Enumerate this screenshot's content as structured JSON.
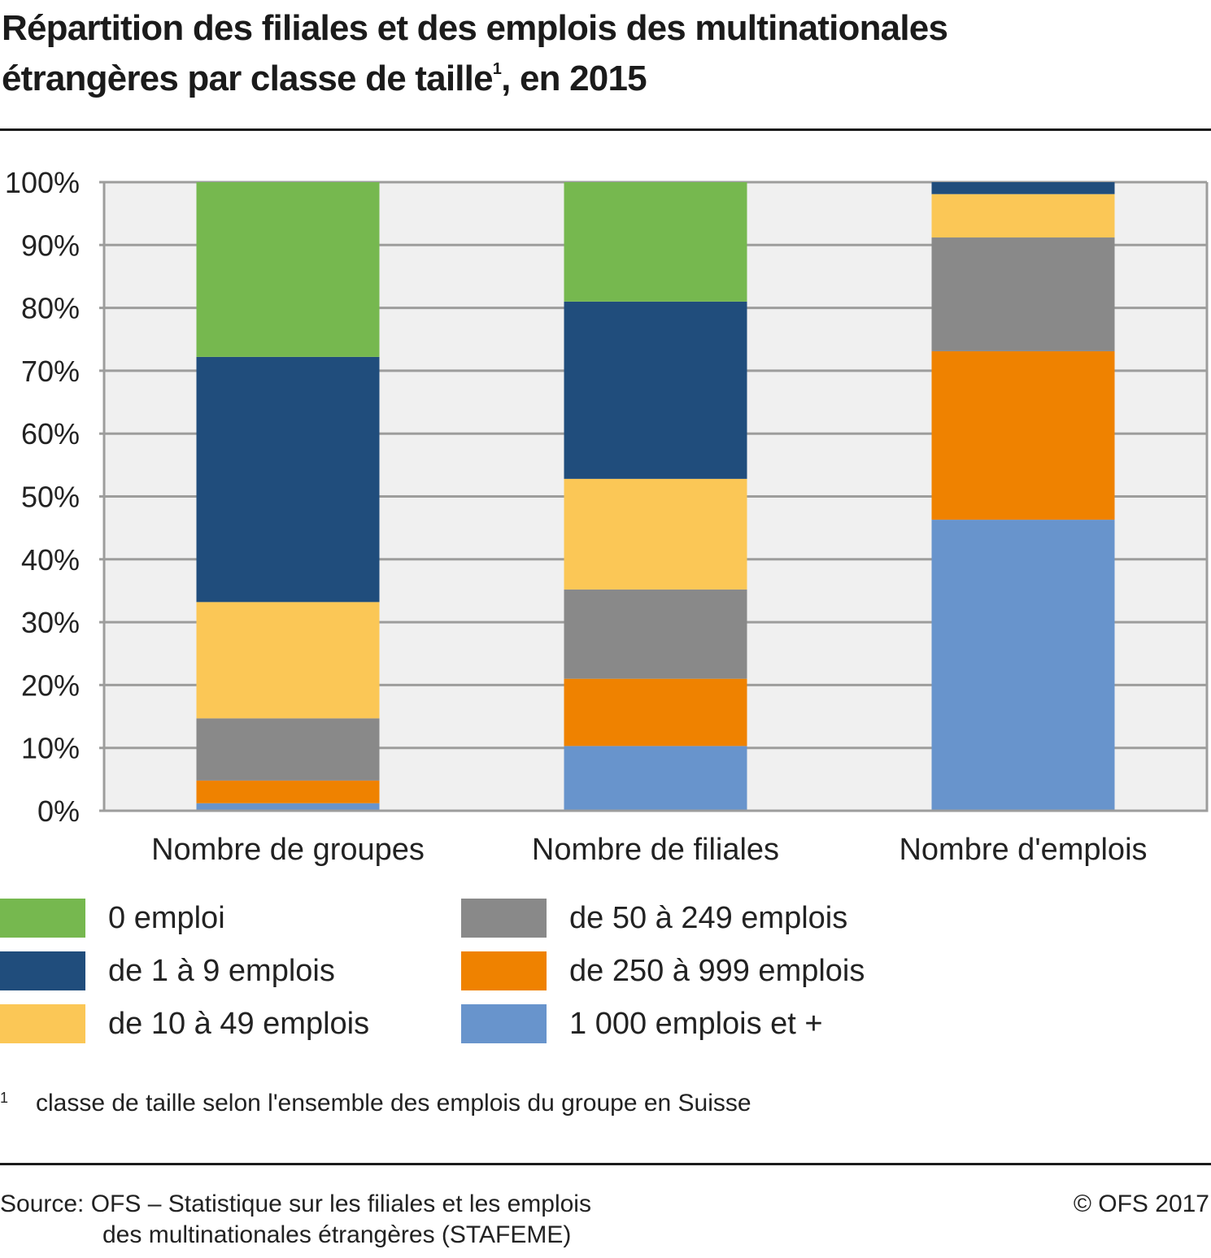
{
  "title": {
    "line1": "Répartition des filiales et des emplois des multinationales",
    "line2_prefix": "étrangères par classe de taille",
    "superscript": "1",
    "line2_suffix": ", en 2015"
  },
  "chart_data": {
    "type": "bar",
    "stacked": true,
    "percent": true,
    "title": "Répartition des filiales et des emplois des multinationales étrangères par classe de taille, en 2015",
    "xlabel": "",
    "ylabel": "",
    "ylim": [
      0,
      100
    ],
    "yticks": [
      "0%",
      "10%",
      "20%",
      "30%",
      "40%",
      "50%",
      "60%",
      "70%",
      "80%",
      "90%",
      "100%"
    ],
    "grid": true,
    "categories": [
      "Nombre de groupes",
      "Nombre de filiales",
      "Nombre d'emplois"
    ],
    "series": [
      {
        "name": "1 000 emplois et +",
        "color": "#6894cc",
        "values": [
          1.2,
          10.3,
          46.3
        ]
      },
      {
        "name": "de 250 à 999 emplois",
        "color": "#ef8200",
        "values": [
          3.6,
          10.7,
          26.8
        ]
      },
      {
        "name": "de 50 à 249 emplois",
        "color": "#898989",
        "values": [
          9.9,
          14.2,
          18.1
        ]
      },
      {
        "name": "de 10 à 49 emplois",
        "color": "#fbc756",
        "values": [
          18.5,
          17.6,
          6.9
        ]
      },
      {
        "name": "de 1 à 9 emplois",
        "color": "#204d7c",
        "values": [
          39.0,
          28.2,
          1.9
        ]
      },
      {
        "name": "0 emploi",
        "color": "#76b84f",
        "values": [
          27.8,
          19.0,
          0.0
        ]
      }
    ],
    "legend_position": "bottom",
    "legend_order": [
      "0 emploi",
      "de 1 à 9 emplois",
      "de 10 à 49 emplois",
      "de 50 à 249 emplois",
      "de 250 à 999 emplois",
      "1 000 emplois et +"
    ]
  },
  "colors": {
    "plot_background": "#f0f0f0",
    "grid": "#9d9d9c"
  },
  "footnote": {
    "mark": "1",
    "text": "classe de taille selon l'ensemble des emplois du groupe en Suisse"
  },
  "source": {
    "line1": "Source: OFS – Statistique sur les filiales et les emplois",
    "line2": "des multinationales étrangères (STAFEME)"
  },
  "copyright": "© OFS 2017"
}
